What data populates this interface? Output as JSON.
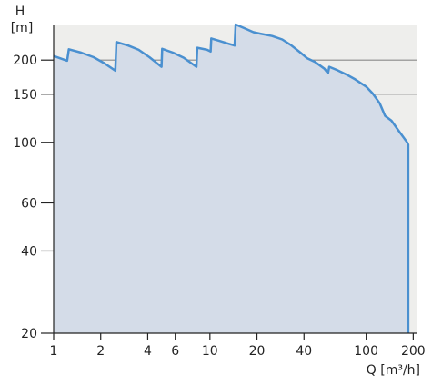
{
  "chart_data": {
    "type": "area",
    "title": "",
    "ylabel_symbol": "H",
    "ylabel_unit": "[m]",
    "xlabel": "Q [m³/h]",
    "xscale": "log",
    "yscale": "log",
    "xlim": [
      1,
      210
    ],
    "ylim": [
      20,
      270
    ],
    "grid": "horizontal",
    "x_ticks": [
      {
        "value": 1,
        "label": "1"
      },
      {
        "value": 2,
        "label": "2"
      },
      {
        "value": 4,
        "label": "4"
      },
      {
        "value": 6,
        "label": "6"
      },
      {
        "value": 10,
        "label": "10"
      },
      {
        "value": 20,
        "label": "20"
      },
      {
        "value": 40,
        "label": "40"
      },
      {
        "value": 100,
        "label": "100"
      },
      {
        "value": 200,
        "label": "200"
      }
    ],
    "y_ticks": [
      {
        "value": 20,
        "label": "20"
      },
      {
        "value": 40,
        "label": "40"
      },
      {
        "value": 60,
        "label": "60"
      },
      {
        "value": 100,
        "label": "100"
      },
      {
        "value": 150,
        "label": "150"
      },
      {
        "value": 200,
        "label": "200"
      }
    ],
    "gridlines_y": [
      200,
      150
    ],
    "series": [
      {
        "color": "#4a90d0",
        "fill": "#d4dce8",
        "points": [
          [
            1.0,
            207
          ],
          [
            1.22,
            199
          ],
          [
            1.25,
            219
          ],
          [
            1.5,
            213
          ],
          [
            1.8,
            205
          ],
          [
            2.1,
            195
          ],
          [
            2.48,
            183
          ],
          [
            2.52,
            233
          ],
          [
            3.0,
            226
          ],
          [
            3.5,
            218
          ],
          [
            4.1,
            205
          ],
          [
            4.9,
            189
          ],
          [
            4.95,
            220
          ],
          [
            5.8,
            213
          ],
          [
            6.8,
            204
          ],
          [
            8.2,
            189
          ],
          [
            8.3,
            222
          ],
          [
            9.6,
            218
          ],
          [
            10.1,
            215
          ],
          [
            10.2,
            240
          ],
          [
            11.5,
            235
          ],
          [
            13.0,
            230
          ],
          [
            14.4,
            226
          ],
          [
            14.6,
            270
          ],
          [
            16.5,
            262
          ],
          [
            19.0,
            253
          ],
          [
            21.0,
            250
          ],
          [
            25.0,
            245
          ],
          [
            29.0,
            238
          ],
          [
            33.0,
            227
          ],
          [
            38.0,
            213
          ],
          [
            42.0,
            203
          ],
          [
            47.0,
            197
          ],
          [
            54.0,
            186
          ],
          [
            57.0,
            179
          ],
          [
            58.0,
            189
          ],
          [
            65.0,
            184
          ],
          [
            75.0,
            177
          ],
          [
            85.0,
            170
          ],
          [
            100.0,
            160
          ],
          [
            110.0,
            151
          ],
          [
            122.0,
            139
          ],
          [
            132.0,
            125
          ],
          [
            145.0,
            120
          ],
          [
            160.0,
            111
          ],
          [
            183.0,
            100
          ],
          [
            186.0,
            98
          ],
          [
            186.0,
            20
          ]
        ]
      }
    ],
    "colors": {
      "plot_background": "#eeeeec",
      "fill": "#d4dce8",
      "line": "#4a90d0",
      "gridline": "#8a8a8a",
      "axis": "#222222"
    }
  }
}
